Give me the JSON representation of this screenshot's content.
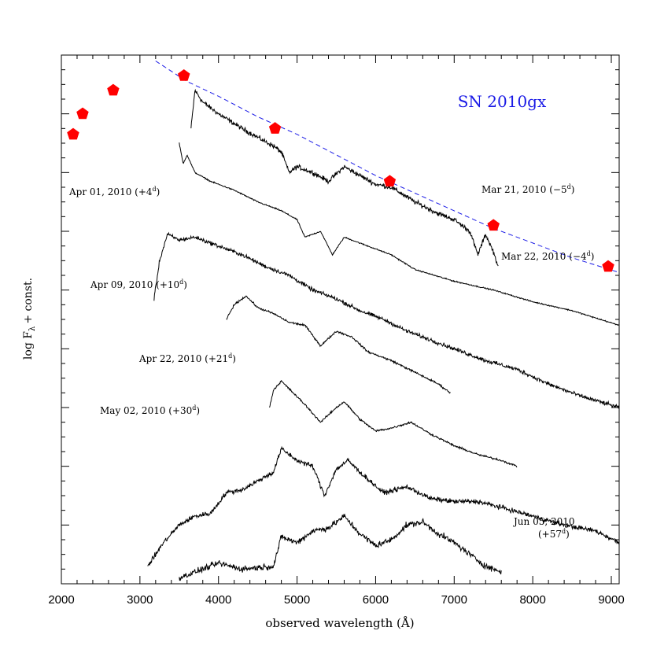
{
  "chart_data": {
    "type": "line",
    "title": "SN 2010gx",
    "xlabel": "observed wavelength (Å)",
    "ylabel": "log F",
    "ylabel_subscript": "λ",
    "ylabel_suffix": "+ const.",
    "xlim": [
      2000,
      9100
    ],
    "xticks": [
      2000,
      3000,
      4000,
      5000,
      6000,
      7000,
      8000,
      9000
    ],
    "title_color": "#1a1ae6",
    "marker_color": "#ff0000",
    "model_color": "#1a1ae6",
    "spectrum_color": "#000000",
    "photometry": [
      {
        "x": 2150,
        "y": 15.3
      },
      {
        "x": 2270,
        "y": 16.0
      },
      {
        "x": 2660,
        "y": 16.8
      },
      {
        "x": 3560,
        "y": 17.3
      },
      {
        "x": 4720,
        "y": 15.5
      },
      {
        "x": 6180,
        "y": 13.7
      },
      {
        "x": 7500,
        "y": 12.2
      },
      {
        "x": 8960,
        "y": 10.8
      }
    ],
    "model_curve": {
      "style": "dashed",
      "points": [
        {
          "x": 3200,
          "y": 17.8
        },
        {
          "x": 3600,
          "y": 17.1
        },
        {
          "x": 4000,
          "y": 16.6
        },
        {
          "x": 4500,
          "y": 15.9
        },
        {
          "x": 5000,
          "y": 15.3
        },
        {
          "x": 5500,
          "y": 14.6
        },
        {
          "x": 6000,
          "y": 13.9
        },
        {
          "x": 6500,
          "y": 13.3
        },
        {
          "x": 7000,
          "y": 12.7
        },
        {
          "x": 7500,
          "y": 12.1
        },
        {
          "x": 8000,
          "y": 11.6
        },
        {
          "x": 8500,
          "y": 11.1
        },
        {
          "x": 9100,
          "y": 10.6
        }
      ]
    },
    "series": [
      {
        "name": "Mar 21, 2010 (−5ᵈ)",
        "noise": 0.12,
        "points": [
          {
            "x": 3650,
            "y": 15.5
          },
          {
            "x": 3700,
            "y": 16.8
          },
          {
            "x": 3800,
            "y": 16.4
          },
          {
            "x": 4000,
            "y": 16.0
          },
          {
            "x": 4300,
            "y": 15.5
          },
          {
            "x": 4500,
            "y": 15.2
          },
          {
            "x": 4700,
            "y": 14.9
          },
          {
            "x": 4800,
            "y": 14.7
          },
          {
            "x": 4900,
            "y": 14.0
          },
          {
            "x": 5000,
            "y": 14.2
          },
          {
            "x": 5200,
            "y": 14.0
          },
          {
            "x": 5400,
            "y": 13.7
          },
          {
            "x": 5600,
            "y": 14.2
          },
          {
            "x": 5800,
            "y": 13.9
          },
          {
            "x": 6000,
            "y": 13.6
          },
          {
            "x": 6200,
            "y": 13.5
          },
          {
            "x": 6500,
            "y": 13.0
          },
          {
            "x": 6800,
            "y": 12.6
          },
          {
            "x": 7000,
            "y": 12.4
          },
          {
            "x": 7200,
            "y": 12.0
          },
          {
            "x": 7300,
            "y": 11.2
          },
          {
            "x": 7400,
            "y": 11.9
          },
          {
            "x": 7500,
            "y": 11.3
          },
          {
            "x": 7560,
            "y": 10.8
          }
        ]
      },
      {
        "name": "Mar 22, 2010 (−4ᵈ)",
        "noise": 0.03,
        "points": [
          {
            "x": 3500,
            "y": 15.0
          },
          {
            "x": 3550,
            "y": 14.3
          },
          {
            "x": 3600,
            "y": 14.6
          },
          {
            "x": 3700,
            "y": 14.0
          },
          {
            "x": 3900,
            "y": 13.7
          },
          {
            "x": 4200,
            "y": 13.4
          },
          {
            "x": 4500,
            "y": 13.0
          },
          {
            "x": 4800,
            "y": 12.7
          },
          {
            "x": 5000,
            "y": 12.4
          },
          {
            "x": 5100,
            "y": 11.8
          },
          {
            "x": 5300,
            "y": 12.0
          },
          {
            "x": 5450,
            "y": 11.2
          },
          {
            "x": 5600,
            "y": 11.8
          },
          {
            "x": 5800,
            "y": 11.6
          },
          {
            "x": 6000,
            "y": 11.4
          },
          {
            "x": 6200,
            "y": 11.2
          },
          {
            "x": 6500,
            "y": 10.7
          },
          {
            "x": 7000,
            "y": 10.3
          },
          {
            "x": 7500,
            "y": 10.0
          },
          {
            "x": 8000,
            "y": 9.6
          },
          {
            "x": 8500,
            "y": 9.3
          },
          {
            "x": 9100,
            "y": 8.8
          }
        ]
      },
      {
        "name": "Apr 01, 2010 (+4ᵈ)",
        "noise": 0.1,
        "points": [
          {
            "x": 3180,
            "y": 9.7
          },
          {
            "x": 3250,
            "y": 11.0
          },
          {
            "x": 3350,
            "y": 11.9
          },
          {
            "x": 3500,
            "y": 11.7
          },
          {
            "x": 3700,
            "y": 11.8
          },
          {
            "x": 4000,
            "y": 11.5
          },
          {
            "x": 4300,
            "y": 11.2
          },
          {
            "x": 4600,
            "y": 10.8
          },
          {
            "x": 4900,
            "y": 10.5
          },
          {
            "x": 5200,
            "y": 10.0
          },
          {
            "x": 5500,
            "y": 9.7
          },
          {
            "x": 5800,
            "y": 9.3
          },
          {
            "x": 6100,
            "y": 9.0
          },
          {
            "x": 6400,
            "y": 8.6
          },
          {
            "x": 6700,
            "y": 8.3
          },
          {
            "x": 7000,
            "y": 8.0
          },
          {
            "x": 7400,
            "y": 7.6
          },
          {
            "x": 7800,
            "y": 7.3
          },
          {
            "x": 8200,
            "y": 6.8
          },
          {
            "x": 8600,
            "y": 6.4
          },
          {
            "x": 9100,
            "y": 6.0
          }
        ]
      },
      {
        "name": "Apr 09, 2010 (+10ᵈ)",
        "noise": 0.05,
        "points": [
          {
            "x": 4100,
            "y": 9.0
          },
          {
            "x": 4200,
            "y": 9.5
          },
          {
            "x": 4350,
            "y": 9.8
          },
          {
            "x": 4500,
            "y": 9.4
          },
          {
            "x": 4700,
            "y": 9.2
          },
          {
            "x": 4900,
            "y": 8.9
          },
          {
            "x": 5100,
            "y": 8.8
          },
          {
            "x": 5300,
            "y": 8.1
          },
          {
            "x": 5500,
            "y": 8.6
          },
          {
            "x": 5700,
            "y": 8.4
          },
          {
            "x": 5900,
            "y": 7.9
          },
          {
            "x": 6200,
            "y": 7.6
          },
          {
            "x": 6500,
            "y": 7.2
          },
          {
            "x": 6800,
            "y": 6.8
          },
          {
            "x": 6950,
            "y": 6.5
          }
        ]
      },
      {
        "name": "Apr 22, 2010 (+21ᵈ)",
        "noise": 0.05,
        "points": [
          {
            "x": 4650,
            "y": 6.0
          },
          {
            "x": 4700,
            "y": 6.6
          },
          {
            "x": 4800,
            "y": 6.9
          },
          {
            "x": 4950,
            "y": 6.5
          },
          {
            "x": 5100,
            "y": 6.1
          },
          {
            "x": 5300,
            "y": 5.5
          },
          {
            "x": 5500,
            "y": 6.0
          },
          {
            "x": 5600,
            "y": 6.2
          },
          {
            "x": 5800,
            "y": 5.6
          },
          {
            "x": 6000,
            "y": 5.2
          },
          {
            "x": 6200,
            "y": 5.3
          },
          {
            "x": 6450,
            "y": 5.5
          },
          {
            "x": 6700,
            "y": 5.1
          },
          {
            "x": 7000,
            "y": 4.7
          },
          {
            "x": 7300,
            "y": 4.4
          },
          {
            "x": 7600,
            "y": 4.2
          },
          {
            "x": 7800,
            "y": 4.0
          }
        ]
      },
      {
        "name": "May 02, 2010 (+30ᵈ)",
        "noise": 0.12,
        "points": [
          {
            "x": 3100,
            "y": 0.6
          },
          {
            "x": 3300,
            "y": 1.4
          },
          {
            "x": 3500,
            "y": 2.0
          },
          {
            "x": 3700,
            "y": 2.3
          },
          {
            "x": 3900,
            "y": 2.4
          },
          {
            "x": 4100,
            "y": 3.1
          },
          {
            "x": 4300,
            "y": 3.2
          },
          {
            "x": 4500,
            "y": 3.5
          },
          {
            "x": 4700,
            "y": 3.8
          },
          {
            "x": 4800,
            "y": 4.6
          },
          {
            "x": 5000,
            "y": 4.2
          },
          {
            "x": 5200,
            "y": 4.0
          },
          {
            "x": 5350,
            "y": 3.0
          },
          {
            "x": 5500,
            "y": 3.9
          },
          {
            "x": 5650,
            "y": 4.2
          },
          {
            "x": 5800,
            "y": 3.8
          },
          {
            "x": 6100,
            "y": 3.1
          },
          {
            "x": 6400,
            "y": 3.3
          },
          {
            "x": 6700,
            "y": 2.9
          },
          {
            "x": 7000,
            "y": 2.8
          },
          {
            "x": 7300,
            "y": 2.8
          },
          {
            "x": 7600,
            "y": 2.6
          },
          {
            "x": 8000,
            "y": 2.3
          },
          {
            "x": 8400,
            "y": 2.0
          },
          {
            "x": 8800,
            "y": 1.8
          },
          {
            "x": 9100,
            "y": 1.4
          }
        ]
      },
      {
        "name": "Jun 05, 2010 (+57ᵈ)",
        "noise": 0.15,
        "points": [
          {
            "x": 3500,
            "y": 0.2
          },
          {
            "x": 4000,
            "y": 0.7
          },
          {
            "x": 4300,
            "y": 0.5
          },
          {
            "x": 4700,
            "y": 0.6
          },
          {
            "x": 4800,
            "y": 1.6
          },
          {
            "x": 5000,
            "y": 1.4
          },
          {
            "x": 5200,
            "y": 1.8
          },
          {
            "x": 5400,
            "y": 1.9
          },
          {
            "x": 5600,
            "y": 2.3
          },
          {
            "x": 5800,
            "y": 1.7
          },
          {
            "x": 6000,
            "y": 1.3
          },
          {
            "x": 6200,
            "y": 1.5
          },
          {
            "x": 6400,
            "y": 2.0
          },
          {
            "x": 6600,
            "y": 2.1
          },
          {
            "x": 6800,
            "y": 1.7
          },
          {
            "x": 7000,
            "y": 1.4
          },
          {
            "x": 7200,
            "y": 1.0
          },
          {
            "x": 7400,
            "y": 0.6
          },
          {
            "x": 7600,
            "y": 0.4
          }
        ]
      }
    ]
  },
  "labels": {
    "apr01": "Apr 01, 2010 (+4",
    "apr09": "Apr 09, 2010 (+10",
    "apr22": "Apr 22, 2010 (+21",
    "may02": "May 02, 2010 (+30",
    "jun05_date": "Jun 05, 2010",
    "jun05_phase": "(+57",
    "mar21": "Mar 21, 2010 (−5",
    "mar22": "Mar 22, 2010 (−4",
    "day_unit": "d",
    "close": ")"
  }
}
